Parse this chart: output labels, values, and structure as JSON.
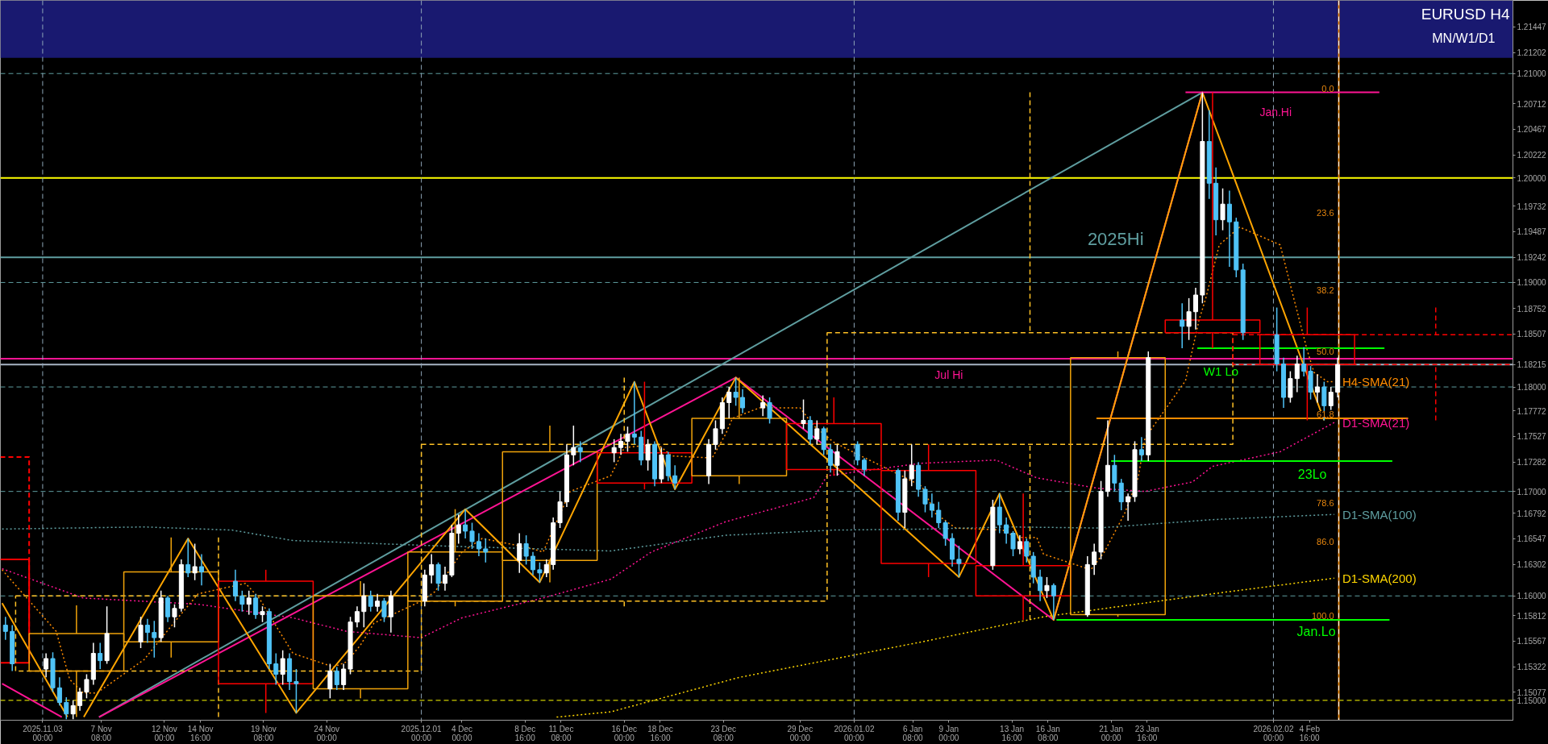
{
  "chart_data": {
    "type": "candlestick",
    "title": "EURUSD H4",
    "subtitle": "MN/W1/D1",
    "xlim": [
      "2025-10-30T21:00",
      "2026-02-19T17:00"
    ],
    "xticks": [
      {
        "value": "2025-11-03T00:00",
        "label": "2025.11.03 00:00"
      },
      {
        "value": "2025-11-07T08:00",
        "label": "7 Nov 08:00"
      },
      {
        "value": "2025-11-12T00:00",
        "label": "12 Nov 00:00"
      },
      {
        "value": "2025-11-14T16:00",
        "label": "14 Nov 16:00"
      },
      {
        "value": "2025-11-19T08:00",
        "label": "19 Nov 08:00"
      },
      {
        "value": "2025-11-24T00:00",
        "label": "24 Nov 00:00"
      },
      {
        "value": "2025-12-01T00:00",
        "label": "2025.12.01 00:00"
      },
      {
        "value": "2025-12-04T00:00",
        "label": "4 Dec 00:00"
      },
      {
        "value": "2025-12-08T16:00",
        "label": "8 Dec 16:00"
      },
      {
        "value": "2025-12-11T08:00",
        "label": "11 Dec 08:00"
      },
      {
        "value": "2025-12-16T00:00",
        "label": "16 Dec 00:00"
      },
      {
        "value": "2025-12-18T16:00",
        "label": "18 Dec 16:00"
      },
      {
        "value": "2025-12-23T08:00",
        "label": "23 Dec 08:00"
      },
      {
        "value": "2025-12-29T00:00",
        "label": "29 Dec 00:00"
      },
      {
        "value": "2026-01-02T00:00",
        "label": "2026.01.02 00:00"
      },
      {
        "value": "2026-01-06T08:00",
        "label": "6 Jan 08:00"
      },
      {
        "value": "2026-01-09T00:00",
        "label": "9 Jan 00:00"
      },
      {
        "value": "2026-01-13T16:00",
        "label": "13 Jan 16:00"
      },
      {
        "value": "2026-01-16T08:00",
        "label": "16 Jan 08:00"
      },
      {
        "value": "2026-01-21T00:00",
        "label": "21 Jan 00:00"
      },
      {
        "value": "2026-01-23T16:00",
        "label": "23 Jan 16:00"
      },
      {
        "value": "2026-02-02T00:00",
        "label": "2026.02.02 00:00"
      },
      {
        "value": "2026-02-04T16:00",
        "label": "4 Feb 16:00"
      }
    ],
    "ylim": [
      1.1481,
      1.217
    ],
    "yticks": [
      1.21447,
      1.21202,
      {
        "value": 1.21,
        "label": "1.21000"
      },
      1.20712,
      1.20467,
      1.20222,
      {
        "value": 1.2,
        "label": "1.20000"
      },
      1.19732,
      1.19487,
      1.19242,
      {
        "value": 1.19,
        "label": "1.19000"
      },
      1.18752,
      1.18507,
      1.18215,
      {
        "value": 1.18,
        "label": "1.18000"
      },
      1.17772,
      1.17527,
      1.17282,
      {
        "value": 1.17,
        "label": "1.17000"
      },
      1.16792,
      1.16547,
      1.16302,
      {
        "value": 1.16,
        "label": "1.16000"
      },
      1.15812,
      1.15567,
      1.15322,
      1.15077,
      {
        "value": 1.15,
        "label": "1.15000"
      }
    ],
    "bands": [
      {
        "axis": "y",
        "from": 1.2115,
        "to": 1.217,
        "color": "#191970"
      }
    ],
    "ref_lines": [
      {
        "axis": "y",
        "value": 1.21,
        "color": "#5f9ea0",
        "line_style": "dashed"
      },
      {
        "axis": "y",
        "value": 1.2,
        "color": "#ffff00"
      },
      {
        "axis": "y",
        "value": 1.1924,
        "color": "#5f9ea0"
      },
      {
        "axis": "y",
        "value": 1.19,
        "color": "#5f9ea0",
        "line_style": "dashed"
      },
      {
        "axis": "y",
        "value": 1.1827,
        "color": "#ff1493"
      },
      {
        "axis": "y",
        "value": 1.18215,
        "color": "#a8b4c4"
      },
      {
        "axis": "y",
        "value": 1.18,
        "color": "#5f9ea0",
        "line_style": "dashed"
      },
      {
        "axis": "y",
        "value": 1.17,
        "color": "#5f9ea0",
        "line_style": "dashed"
      },
      {
        "axis": "y",
        "value": 1.16,
        "color": "#5f9ea0",
        "line_style": "dashed"
      },
      {
        "axis": "y",
        "value": 1.15,
        "color": "#ffff00",
        "line_style": "dashed"
      },
      {
        "axis": "x",
        "value": "2025-11-03T00:00",
        "color": "#8fa6b8",
        "line_style": "dashed"
      },
      {
        "axis": "x",
        "value": "2025-12-01T00:00",
        "color": "#8fa6b8",
        "line_style": "dashed"
      },
      {
        "axis": "x",
        "value": "2026-01-02T00:00",
        "color": "#8fa6b8",
        "line_style": "dashed"
      },
      {
        "axis": "x",
        "value": "2026-02-02T00:00",
        "color": "#8fa6b8",
        "line_style": "dashed"
      },
      {
        "axis": "x",
        "value": "2026-02-06T20:00",
        "color": "#e8870e"
      },
      {
        "axis": "x",
        "value": "2026-02-06T20:00",
        "color": "#ffffff",
        "line_style": "dashed"
      }
    ],
    "annotations": [
      {
        "text": "2025Hi",
        "x": "2026-01-21T08:00",
        "y": 1.1924
      },
      {
        "text": "Jul Hi",
        "x": "2026-01-09T00:00",
        "y": 1.1827
      },
      {
        "text": "Jan.Hi",
        "x": "2026-02-02T04:00",
        "y": 1.2082
      },
      {
        "text": "W1 Lo",
        "x": "2026-01-29T03:00",
        "y": 1.1837
      },
      {
        "text": "23Lo",
        "x": "2026-02-04T21:00",
        "y": 1.1729
      },
      {
        "text": "Jan.Lo",
        "x": "2026-02-05T04:00",
        "y": 1.1577
      },
      {
        "text": "0.0",
        "x": "2026-02-06T20:00",
        "y": 1.2082
      },
      {
        "text": "23.6",
        "x": "2026-02-06T20:00",
        "y": 1.1963
      },
      {
        "text": "38.2",
        "x": "2026-02-06T20:00",
        "y": 1.1889
      },
      {
        "text": "50.0",
        "x": "2026-02-06T20:00",
        "y": 1.183
      },
      {
        "text": "61.8",
        "x": "2026-02-06T20:00",
        "y": 1.177
      },
      {
        "text": "78.6",
        "x": "2026-02-06T20:00",
        "y": 1.1685
      },
      {
        "text": "86.0",
        "x": "2026-02-06T20:00",
        "y": 1.1648
      },
      {
        "text": "100.0",
        "x": "2026-02-06T20:00",
        "y": 1.1577
      }
    ],
    "series": [
      {
        "type": "line",
        "name": "H4-SMA(21)",
        "color": "#ff8c00",
        "line_style": "dotted",
        "x": [
          "2025-10-31T00:00",
          "2025-11-04T00:00",
          "2025-11-05T00:00",
          "2025-11-06T00:00",
          "2025-11-07T00:00",
          "2025-11-10T12:00",
          "2025-11-13T00:00",
          "2025-11-14T12:00",
          "2025-11-18T00:00",
          "2025-11-19T00:00",
          "2025-11-20T12:00",
          "2025-11-21T12:00",
          "2025-11-24T12:00",
          "2025-11-25T12:00",
          "2025-11-26T12:00",
          "2025-11-27T12:00",
          "2025-12-01T00:00",
          "2025-12-02T00:00",
          "2025-12-03T00:00",
          "2025-12-04T00:00",
          "2025-12-05T12:00",
          "2025-12-09T00:00",
          "2025-12-10T00:00",
          "2025-12-11T00:00",
          "2025-12-12T00:00",
          "2025-12-15T00:00",
          "2025-12-15T12:00",
          "2025-12-16T00:00",
          "2025-12-18T12:00",
          "2025-12-19T12:00",
          "2025-12-22T12:00",
          "2025-12-23T12:00",
          "2025-12-24T00:00",
          "2025-12-26T00:00",
          "2025-12-29T00:00",
          "2025-12-30T00:00",
          "2025-12-31T12:00",
          "2026-01-02T12:00",
          "2026-01-05T12:00",
          "2026-01-07T00:00",
          "2026-01-08T00:00",
          "2026-01-09T12:00",
          "2026-01-13T00:00",
          "2026-01-14T00:00",
          "2026-01-15T12:00",
          "2026-01-16T00:00",
          "2026-01-19T12:00",
          "2026-01-20T12:00",
          "2026-01-22T00:00",
          "2026-01-23T00:00",
          "2026-01-23T12:00",
          "2026-01-26T12:00",
          "2026-01-27T12:00",
          "2026-01-28T00:00",
          "2026-01-29T00:00",
          "2026-01-30T12:00",
          "2026-02-02T12:00",
          "2026-02-03T12:00",
          "2026-02-04T12:00",
          "2026-02-05T00:00",
          "2026-02-06T00:00",
          "2026-02-06T12:00"
        ],
        "values": [
          1.1625,
          1.1566,
          1.152,
          1.1507,
          1.1507,
          1.1539,
          1.1579,
          1.1602,
          1.1612,
          1.1598,
          1.1566,
          1.1545,
          1.1532,
          1.1537,
          1.1553,
          1.1574,
          1.1595,
          1.1604,
          1.1623,
          1.1642,
          1.1655,
          1.1646,
          1.1642,
          1.1671,
          1.17,
          1.1715,
          1.1728,
          1.1742,
          1.1745,
          1.1734,
          1.1732,
          1.1755,
          1.177,
          1.178,
          1.178,
          1.1763,
          1.1747,
          1.1734,
          1.1715,
          1.1705,
          1.1679,
          1.1665,
          1.1663,
          1.1656,
          1.1656,
          1.164,
          1.1625,
          1.1642,
          1.1679,
          1.1713,
          1.1751,
          1.1806,
          1.1864,
          1.1885,
          1.1936,
          1.1953,
          1.1936,
          1.1885,
          1.1835,
          1.1814,
          1.1805,
          1.1805
        ]
      },
      {
        "type": "line",
        "name": "D1-SMA(21)",
        "color": "#ff1493",
        "line_style": "dotted",
        "x": [
          "2025-10-31T00:00",
          "2025-11-06T00:00",
          "2025-11-14T12:00",
          "2025-11-21T12:00",
          "2025-11-25T12:00",
          "2025-12-01T00:00",
          "2025-12-04T00:00",
          "2025-12-10T00:00",
          "2025-12-15T00:00",
          "2025-12-18T00:00",
          "2025-12-23T12:00",
          "2025-12-30T00:00",
          "2025-12-31T00:00",
          "2026-01-07T00:00",
          "2026-01-12T12:00",
          "2026-01-15T12:00",
          "2026-01-20T00:00",
          "2026-01-23T12:00",
          "2026-01-27T00:00",
          "2026-01-28T12:00",
          "2026-02-02T12:00",
          "2026-02-05T12:00",
          "2026-02-06T12:00"
        ],
        "values": [
          1.1626,
          1.1598,
          1.1592,
          1.1579,
          1.1566,
          1.156,
          1.1579,
          1.1598,
          1.1616,
          1.1642,
          1.1671,
          1.1694,
          1.1715,
          1.1727,
          1.173,
          1.1713,
          1.1703,
          1.17,
          1.1709,
          1.1724,
          1.1738,
          1.1759,
          1.1766
        ]
      },
      {
        "type": "line",
        "name": "D1-SMA(100)",
        "color": "#5f9ea0",
        "line_style": "dotted",
        "x": [
          "2025-10-31T00:00",
          "2025-11-10T12:00",
          "2025-11-17T00:00",
          "2025-11-21T12:00",
          "2025-12-02T00:00",
          "2025-12-15T00:00",
          "2025-12-23T12:00",
          "2025-12-31T12:00",
          "2026-01-07T12:00",
          "2026-01-13T12:00",
          "2026-01-20T00:00",
          "2026-01-28T12:00",
          "2026-02-06T12:00"
        ],
        "values": [
          1.1664,
          1.1666,
          1.1663,
          1.1653,
          1.1648,
          1.1643,
          1.1658,
          1.1663,
          1.1664,
          1.1666,
          1.1665,
          1.1673,
          1.1678
        ]
      },
      {
        "type": "line",
        "name": "D1-SMA(200)",
        "color": "#ffd700",
        "line_style": "dotted",
        "x": [
          "2025-12-11T00:00",
          "2025-12-15T00:00",
          "2025-12-24T12:00",
          "2026-01-07T00:00",
          "2026-01-16T00:00",
          "2026-01-28T12:00",
          "2026-02-06T12:00"
        ],
        "values": [
          1.1484,
          1.1489,
          1.1522,
          1.1556,
          1.158,
          1.1602,
          1.1617
        ]
      },
      {
        "type": "line",
        "color": "#5f9ea0",
        "x": [
          "2025-11-07T04:00",
          "2026-01-27T18:00"
        ],
        "values": [
          1.1484,
          1.2082
        ]
      },
      {
        "type": "line",
        "color": "#ff1493",
        "x": [
          "2025-10-31T00:00",
          "2025-11-04T10:00",
          "2025-11-05T12:00",
          "2025-11-07T04:00",
          "2025-12-24T06:00",
          "2026-01-16T18:00",
          "2026-01-27T18:00"
        ],
        "values": [
          1.1516,
          1.1484,
          null,
          1.1484,
          1.1809,
          1.1577,
          1.2082
        ]
      },
      {
        "type": "line",
        "color": "#ffa500",
        "x": [
          "2025-10-31T00:00",
          "2025-11-04T20:00",
          "2025-11-05T10:00",
          "2025-11-06T01:00",
          "2025-11-13T18:00",
          "2025-11-21T18:00",
          "2025-12-04T06:00",
          "2025-12-09T18:00",
          "2025-12-16T18:00",
          "2025-12-19T18:00",
          "2025-12-24T06:00",
          "2026-01-09T18:00",
          "2026-01-12T18:00",
          "2026-01-16T18:00",
          "2026-01-27T18:00",
          "2026-02-05T18:00"
        ],
        "values": [
          1.1593,
          1.1484,
          null,
          1.1484,
          1.1655,
          1.1488,
          1.1683,
          1.1613,
          1.1805,
          1.1702,
          1.1809,
          1.1618,
          1.1698,
          1.1577,
          1.2082,
          1.1768
        ]
      },
      {
        "type": "line",
        "color": "#ff1493",
        "x": [
          "2026-01-26T12:00",
          "2026-02-09T20:00"
        ],
        "values": [
          1.2082,
          1.2082
        ]
      },
      {
        "type": "line",
        "color": "#ff8c00",
        "x": [
          "2026-01-19T22:00",
          "2026-02-11T23:00"
        ],
        "values": [
          1.177,
          1.177
        ]
      },
      {
        "type": "line",
        "color": "#00ff00",
        "x": [
          "2026-01-27T09:00",
          "2026-02-10T05:00"
        ],
        "values": [
          1.1837,
          1.1837
        ]
      },
      {
        "type": "line",
        "color": "#00ff00",
        "x": [
          "2026-01-21T00:00",
          "2026-02-10T19:00"
        ],
        "values": [
          1.1729,
          1.1729
        ]
      },
      {
        "type": "line",
        "color": "#00ff00",
        "x": [
          "2026-01-16T23:00",
          "2026-02-10T14:00"
        ],
        "values": [
          1.1577,
          1.1577
        ]
      },
      {
        "type": "line",
        "color": "#ff0000",
        "line_style": "dashed",
        "x": [
          "2025-10-30T21:00",
          "2025-11-02T00:00",
          "2025-11-02T00:00"
        ],
        "values": [
          1.1733,
          1.1733,
          1.1536
        ]
      },
      {
        "type": "line",
        "color": "#ff0000",
        "x": [
          "2025-10-30T21:00",
          "2025-11-02T00:00",
          "2025-11-02T00:00",
          "2025-10-30T21:00"
        ],
        "values": [
          1.1635,
          1.1635,
          1.1536,
          1.1536
        ]
      },
      {
        "type": "candlestick",
        "line_style": "dashed",
        "x": [
          "2025-11-16T00:00",
          "2025-12-16T00:00",
          "2026-01-15T00:00",
          "2026-02-14T00:00"
        ],
        "ohlc": [
          [
            1.1528,
            1.1656,
            1.1484,
            1.16
          ],
          [
            1.1595,
            1.1809,
            1.159,
            1.1745
          ],
          [
            1.1745,
            1.2082,
            1.1577,
            1.1852
          ],
          [
            1.185,
            1.1876,
            1.1768,
            1.18215
          ]
        ],
        "colors": [
          "#ffc125",
          "#ffc125",
          "#ffc125",
          "#ff0000"
        ]
      },
      {
        "type": "candlestick",
        "line_style": "solid",
        "x": [
          "2025-11-05T12:00",
          "2025-11-12T12:00",
          "2025-11-19T12:00",
          "2025-11-26T12:00",
          "2025-12-03T12:00",
          "2025-12-10T12:00",
          "2025-12-17T12:00",
          "2025-12-24T12:00",
          "2025-12-31T12:00",
          "2026-01-07T12:00",
          "2026-01-14T12:00",
          "2026-01-21T12:00",
          "2026-01-28T12:00",
          "2026-02-04T12:00"
        ],
        "ohlc": [
          [
            1.1528,
            1.1591,
            1.1484,
            1.1564
          ],
          [
            1.1556,
            1.1656,
            1.1541,
            1.1623
          ],
          [
            1.1614,
            1.1625,
            1.1488,
            1.1516
          ],
          [
            1.1511,
            1.1614,
            1.1502,
            1.16
          ],
          [
            1.1595,
            1.1683,
            1.159,
            1.1642
          ],
          [
            1.1634,
            1.1763,
            1.1613,
            1.1738
          ],
          [
            1.1737,
            1.1805,
            1.1702,
            1.1708
          ],
          [
            1.1715,
            1.1809,
            1.1707,
            1.177
          ],
          [
            1.1765,
            1.179,
            1.1715,
            1.1721
          ],
          [
            1.172,
            1.1745,
            1.1618,
            1.1631
          ],
          [
            1.1629,
            1.1698,
            1.1577,
            1.16
          ],
          [
            1.1582,
            1.1834,
            1.158,
            1.1828
          ],
          [
            1.1864,
            1.2082,
            1.1837,
            1.1852
          ],
          [
            1.185,
            1.1876,
            1.1768,
            1.18215
          ]
        ],
        "colors": [
          "#f0a30a",
          "#f0a30a",
          "#ff0000",
          "#f0a30a",
          "#f0a30a",
          "#f0a30a",
          "#ff0000",
          "#f0a30a",
          "#ff0000",
          "#ff0000",
          "#ff0000",
          "#f0a30a",
          "#ff0000",
          "#ff0000"
        ]
      },
      {
        "x": [
          "2025-10-31T06:00",
          "2025-10-31T18:00",
          "2025-11-03T06:00",
          "2025-11-03T18:00",
          "2025-11-04T06:00",
          "2025-11-04T18:00",
          "2025-11-05T06:00",
          "2025-11-05T18:00",
          "2025-11-06T06:00",
          "2025-11-06T18:00",
          "2025-11-07T06:00",
          "2025-11-07T18:00",
          "2025-11-10T06:00",
          "2025-11-10T18:00",
          "2025-11-11T06:00",
          "2025-11-11T18:00",
          "2025-11-12T06:00",
          "2025-11-12T18:00",
          "2025-11-13T06:00",
          "2025-11-13T18:00",
          "2025-11-14T06:00",
          "2025-11-14T18:00",
          "2025-11-17T06:00",
          "2025-11-17T18:00",
          "2025-11-18T06:00",
          "2025-11-18T18:00",
          "2025-11-19T06:00",
          "2025-11-19T18:00",
          "2025-11-20T06:00",
          "2025-11-20T18:00",
          "2025-11-21T06:00",
          "2025-11-21T18:00",
          "2025-11-24T06:00",
          "2025-11-24T18:00",
          "2025-11-25T06:00",
          "2025-11-25T18:00",
          "2025-11-26T06:00",
          "2025-11-26T18:00",
          "2025-11-27T06:00",
          "2025-11-27T18:00",
          "2025-11-28T06:00",
          "2025-11-28T18:00",
          "2025-12-01T06:00",
          "2025-12-01T18:00",
          "2025-12-02T06:00",
          "2025-12-02T18:00",
          "2025-12-03T06:00",
          "2025-12-03T18:00",
          "2025-12-04T06:00",
          "2025-12-04T18:00",
          "2025-12-05T06:00",
          "2025-12-05T18:00",
          "2025-12-08T06:00",
          "2025-12-08T18:00",
          "2025-12-09T06:00",
          "2025-12-09T18:00",
          "2025-12-10T06:00",
          "2025-12-10T18:00",
          "2025-12-11T06:00",
          "2025-12-11T18:00",
          "2025-12-12T06:00",
          "2025-12-12T18:00",
          "2025-12-15T06:00",
          "2025-12-15T18:00",
          "2025-12-16T06:00",
          "2025-12-16T18:00",
          "2025-12-17T06:00",
          "2025-12-17T18:00",
          "2025-12-18T06:00",
          "2025-12-18T18:00",
          "2025-12-19T06:00",
          "2025-12-19T18:00",
          "2025-12-22T06:00",
          "2025-12-22T18:00",
          "2025-12-23T06:00",
          "2025-12-23T18:00",
          "2025-12-24T06:00",
          "2025-12-24T18:00",
          "2025-12-26T06:00",
          "2025-12-26T18:00",
          "2025-12-29T06:00",
          "2025-12-29T18:00",
          "2025-12-30T06:00",
          "2025-12-30T18:00",
          "2025-12-31T06:00",
          "2025-12-31T18:00",
          "2026-01-02T06:00",
          "2026-01-02T18:00",
          "2026-01-05T06:00",
          "2026-01-05T18:00",
          "2026-01-06T06:00",
          "2026-01-06T18:00",
          "2026-01-07T06:00",
          "2026-01-07T18:00",
          "2026-01-08T06:00",
          "2026-01-08T18:00",
          "2026-01-09T06:00",
          "2026-01-09T18:00",
          "2026-01-12T06:00",
          "2026-01-12T18:00",
          "2026-01-13T06:00",
          "2026-01-13T18:00",
          "2026-01-14T06:00",
          "2026-01-14T18:00",
          "2026-01-15T06:00",
          "2026-01-15T18:00",
          "2026-01-16T06:00",
          "2026-01-16T18:00",
          "2026-01-19T06:00",
          "2026-01-19T18:00",
          "2026-01-20T06:00",
          "2026-01-20T18:00",
          "2026-01-21T06:00",
          "2026-01-21T18:00",
          "2026-01-22T06:00",
          "2026-01-22T18:00",
          "2026-01-23T06:00",
          "2026-01-23T18:00",
          "2026-01-26T06:00",
          "2026-01-26T18:00",
          "2026-01-27T06:00",
          "2026-01-27T18:00",
          "2026-01-28T06:00",
          "2026-01-28T18:00",
          "2026-01-29T06:00",
          "2026-01-29T18:00",
          "2026-01-30T06:00",
          "2026-01-30T18:00",
          "2026-02-02T06:00",
          "2026-02-02T18:00",
          "2026-02-03T06:00",
          "2026-02-03T18:00",
          "2026-02-04T06:00",
          "2026-02-04T18:00",
          "2026-02-05T06:00",
          "2026-02-05T18:00",
          "2026-02-06T06:00",
          "2026-02-06T18:00"
        ],
        "ohlc": [
          [
            1.1572,
            1.158,
            1.1558,
            1.1566
          ],
          [
            1.1566,
            1.1572,
            1.1528,
            1.1535
          ],
          [
            1.153,
            1.1545,
            1.1522,
            1.154
          ],
          [
            1.154,
            1.1546,
            1.1508,
            1.1512
          ],
          [
            1.1512,
            1.1522,
            1.1495,
            1.1498
          ],
          [
            1.1498,
            1.1503,
            1.1482,
            1.1487
          ],
          [
            1.1487,
            1.15,
            1.1482,
            1.1495
          ],
          [
            1.1495,
            1.1512,
            1.149,
            1.1508
          ],
          [
            1.1508,
            1.1525,
            1.1502,
            1.152
          ],
          [
            1.152,
            1.1555,
            1.1515,
            1.1545
          ],
          [
            1.1545,
            1.1555,
            1.153,
            1.1538
          ],
          [
            1.1538,
            1.159,
            1.1535,
            1.1564
          ],
          [
            1.1556,
            1.158,
            1.155,
            1.1572
          ],
          [
            1.1572,
            1.1578,
            1.1555,
            1.1565
          ],
          [
            1.1565,
            1.1576,
            1.1541,
            1.156
          ],
          [
            1.156,
            1.1605,
            1.1556,
            1.1598
          ],
          [
            1.1598,
            1.16,
            1.1575,
            1.158
          ],
          [
            1.158,
            1.1592,
            1.157,
            1.1588
          ],
          [
            1.1588,
            1.1635,
            1.1585,
            1.163
          ],
          [
            1.163,
            1.1655,
            1.1618,
            1.1622
          ],
          [
            1.1622,
            1.165,
            1.1615,
            1.1628
          ],
          [
            1.1628,
            1.164,
            1.161,
            1.1623
          ],
          [
            1.1614,
            1.1625,
            1.1595,
            1.16
          ],
          [
            1.16,
            1.1605,
            1.1585,
            1.1592
          ],
          [
            1.1592,
            1.1605,
            1.1582,
            1.1598
          ],
          [
            1.1598,
            1.1602,
            1.1578,
            1.1582
          ],
          [
            1.1582,
            1.159,
            1.1575,
            1.1585
          ],
          [
            1.1585,
            1.1588,
            1.153,
            1.1535
          ],
          [
            1.1535,
            1.1545,
            1.1515,
            1.1525
          ],
          [
            1.1525,
            1.1548,
            1.1515,
            1.154
          ],
          [
            1.154,
            1.1545,
            1.151,
            1.1518
          ],
          [
            1.1518,
            1.153,
            1.1488,
            1.1516
          ],
          [
            1.1511,
            1.1535,
            1.1502,
            1.1528
          ],
          [
            1.1528,
            1.1532,
            1.151,
            1.1515
          ],
          [
            1.1515,
            1.1535,
            1.151,
            1.153
          ],
          [
            1.153,
            1.158,
            1.1525,
            1.1575
          ],
          [
            1.1575,
            1.159,
            1.157,
            1.1585
          ],
          [
            1.1585,
            1.1612,
            1.157,
            1.16
          ],
          [
            1.16,
            1.1605,
            1.1585,
            1.159
          ],
          [
            1.159,
            1.1602,
            1.1585,
            1.1595
          ],
          [
            1.1595,
            1.1598,
            1.1575,
            1.158
          ],
          [
            1.158,
            1.1605,
            1.1565,
            1.16
          ],
          [
            1.1595,
            1.1625,
            1.159,
            1.162
          ],
          [
            1.162,
            1.164,
            1.1612,
            1.163
          ],
          [
            1.163,
            1.1632,
            1.1605,
            1.1612
          ],
          [
            1.1612,
            1.1628,
            1.1605,
            1.162
          ],
          [
            1.162,
            1.1668,
            1.1618,
            1.166
          ],
          [
            1.166,
            1.1678,
            1.165,
            1.1668
          ],
          [
            1.1668,
            1.1683,
            1.1655,
            1.1662
          ],
          [
            1.1662,
            1.167,
            1.1645,
            1.1652
          ],
          [
            1.1652,
            1.166,
            1.1638,
            1.1645
          ],
          [
            1.1645,
            1.1655,
            1.1632,
            1.1642
          ],
          [
            1.1634,
            1.166,
            1.1622,
            1.165
          ],
          [
            1.165,
            1.1658,
            1.163,
            1.1638
          ],
          [
            1.1638,
            1.1642,
            1.162,
            1.1625
          ],
          [
            1.1625,
            1.1632,
            1.1613,
            1.1622
          ],
          [
            1.1622,
            1.1635,
            1.1618,
            1.163
          ],
          [
            1.163,
            1.1675,
            1.1625,
            1.167
          ],
          [
            1.167,
            1.17,
            1.1665,
            1.169
          ],
          [
            1.169,
            1.1745,
            1.1685,
            1.1735
          ],
          [
            1.1735,
            1.1763,
            1.1725,
            1.1742
          ],
          [
            1.1742,
            1.1748,
            1.1728,
            1.1738
          ],
          [
            1.1737,
            1.175,
            1.1728,
            1.1742
          ],
          [
            1.1742,
            1.1755,
            1.1735,
            1.1748
          ],
          [
            1.1748,
            1.1762,
            1.1738,
            1.1755
          ],
          [
            1.1755,
            1.1805,
            1.1745,
            1.1752
          ],
          [
            1.1752,
            1.1758,
            1.1725,
            1.173
          ],
          [
            1.173,
            1.175,
            1.172,
            1.1745
          ],
          [
            1.1745,
            1.1748,
            1.1705,
            1.1712
          ],
          [
            1.1712,
            1.1742,
            1.1708,
            1.1735
          ],
          [
            1.1735,
            1.1738,
            1.171,
            1.1715
          ],
          [
            1.1715,
            1.1725,
            1.1702,
            1.1708
          ],
          [
            1.1715,
            1.175,
            1.1707,
            1.1745
          ],
          [
            1.1745,
            1.1768,
            1.174,
            1.176
          ],
          [
            1.176,
            1.179,
            1.1755,
            1.1785
          ],
          [
            1.1785,
            1.18,
            1.177,
            1.1795
          ],
          [
            1.1795,
            1.1809,
            1.1782,
            1.179
          ],
          [
            1.179,
            1.1798,
            1.1775,
            1.178
          ],
          [
            1.178,
            1.1792,
            1.1772,
            1.1785
          ],
          [
            1.1785,
            1.179,
            1.1765,
            1.177
          ],
          [
            1.1765,
            1.1788,
            1.176,
            1.1768
          ],
          [
            1.1768,
            1.1772,
            1.1745,
            1.175
          ],
          [
            1.175,
            1.1768,
            1.1745,
            1.176
          ],
          [
            1.176,
            1.1762,
            1.1735,
            1.174
          ],
          [
            1.174,
            1.1745,
            1.1718,
            1.1725
          ],
          [
            1.1725,
            1.1745,
            1.1715,
            1.1738
          ],
          [
            1.1745,
            1.1748,
            1.1725,
            1.173
          ],
          [
            1.173,
            1.1732,
            1.1715,
            1.1721
          ],
          [
            1.172,
            1.1722,
            1.1672,
            1.168
          ],
          [
            1.168,
            1.172,
            1.1665,
            1.1712
          ],
          [
            1.1712,
            1.1745,
            1.1705,
            1.1725
          ],
          [
            1.1725,
            1.1728,
            1.1695,
            1.1702
          ],
          [
            1.1702,
            1.1705,
            1.168,
            1.1688
          ],
          [
            1.1688,
            1.1698,
            1.1675,
            1.1682
          ],
          [
            1.1682,
            1.169,
            1.1665,
            1.167
          ],
          [
            1.167,
            1.1672,
            1.1648,
            1.1655
          ],
          [
            1.1655,
            1.166,
            1.1628,
            1.1635
          ],
          [
            1.1635,
            1.1648,
            1.1618,
            1.1631
          ],
          [
            1.1629,
            1.1692,
            1.1625,
            1.1685
          ],
          [
            1.1685,
            1.1698,
            1.166,
            1.1668
          ],
          [
            1.1668,
            1.1675,
            1.165,
            1.166
          ],
          [
            1.166,
            1.1662,
            1.1638,
            1.1645
          ],
          [
            1.1645,
            1.1658,
            1.164,
            1.1652
          ],
          [
            1.1652,
            1.1655,
            1.1632,
            1.1638
          ],
          [
            1.1638,
            1.1642,
            1.1612,
            1.1618
          ],
          [
            1.1618,
            1.1625,
            1.1595,
            1.1605
          ],
          [
            1.1605,
            1.1618,
            1.1598,
            1.161
          ],
          [
            1.161,
            1.1612,
            1.1577,
            1.16
          ],
          [
            1.1582,
            1.1638,
            1.158,
            1.163
          ],
          [
            1.163,
            1.165,
            1.162,
            1.1642
          ],
          [
            1.1642,
            1.171,
            1.1635,
            1.17
          ],
          [
            1.17,
            1.1768,
            1.1695,
            1.1725
          ],
          [
            1.1725,
            1.1735,
            1.17,
            1.1708
          ],
          [
            1.1708,
            1.1712,
            1.1682,
            1.169
          ],
          [
            1.169,
            1.1698,
            1.1672,
            1.1695
          ],
          [
            1.1695,
            1.1748,
            1.169,
            1.174
          ],
          [
            1.174,
            1.1752,
            1.1729,
            1.1735
          ],
          [
            1.1735,
            1.1834,
            1.1729,
            1.1828
          ],
          [
            1.1864,
            1.188,
            1.1837,
            1.1858
          ],
          [
            1.1858,
            1.1885,
            1.1845,
            1.1872
          ],
          [
            1.1872,
            1.1895,
            1.1855,
            1.1888
          ],
          [
            1.1888,
            1.2082,
            1.188,
            1.2035
          ],
          [
            1.2035,
            1.2065,
            1.198,
            1.1995
          ],
          [
            1.1995,
            1.201,
            1.1945,
            1.196
          ],
          [
            1.196,
            1.199,
            1.195,
            1.1975
          ],
          [
            1.1975,
            1.1988,
            1.1915,
            1.1958
          ],
          [
            1.1958,
            1.1962,
            1.1905,
            1.1912
          ],
          [
            1.1912,
            1.1918,
            1.1845,
            1.1852
          ],
          [
            1.185,
            1.1876,
            1.1815,
            1.1822
          ],
          [
            1.1822,
            1.1828,
            1.178,
            1.179
          ],
          [
            1.179,
            1.1815,
            1.1785,
            1.1808
          ],
          [
            1.1808,
            1.183,
            1.1795,
            1.1822
          ],
          [
            1.1822,
            1.1838,
            1.181,
            1.1815
          ],
          [
            1.1815,
            1.182,
            1.1788,
            1.1795
          ],
          [
            1.1795,
            1.1812,
            1.1785,
            1.18
          ],
          [
            1.18,
            1.1805,
            1.1768,
            1.1782
          ],
          [
            1.1782,
            1.18,
            1.1778,
            1.1795
          ],
          [
            1.1795,
            1.1828,
            1.179,
            1.18215
          ]
        ],
        "colors": [
          "#4fc3f7",
          "#4fc3f7",
          "#ffffff",
          "#4fc3f7",
          "#4fc3f7",
          "#4fc3f7",
          "#ffffff",
          "#ffffff",
          "#ffffff",
          "#ffffff",
          "#4fc3f7",
          "#ffffff",
          "#ffffff",
          "#4fc3f7",
          "#4fc3f7",
          "#ffffff",
          "#4fc3f7",
          "#ffffff",
          "#ffffff",
          "#4fc3f7",
          "#ffffff",
          "#4fc3f7",
          "#4fc3f7",
          "#4fc3f7",
          "#ffffff",
          "#4fc3f7",
          "#ffffff",
          "#4fc3f7",
          "#4fc3f7",
          "#ffffff",
          "#4fc3f7",
          "#4fc3f7",
          "#ffffff",
          "#4fc3f7",
          "#ffffff",
          "#ffffff",
          "#ffffff",
          "#ffffff",
          "#4fc3f7",
          "#ffffff",
          "#4fc3f7",
          "#ffffff",
          "#ffffff",
          "#ffffff",
          "#4fc3f7",
          "#ffffff",
          "#ffffff",
          "#ffffff",
          "#4fc3f7",
          "#4fc3f7",
          "#4fc3f7",
          "#4fc3f7",
          "#ffffff",
          "#4fc3f7",
          "#4fc3f7",
          "#4fc3f7",
          "#ffffff",
          "#ffffff",
          "#ffffff",
          "#ffffff",
          "#ffffff",
          "#4fc3f7",
          "#ffffff",
          "#ffffff",
          "#ffffff",
          "#4fc3f7",
          "#4fc3f7",
          "#ffffff",
          "#4fc3f7",
          "#ffffff",
          "#4fc3f7",
          "#4fc3f7",
          "#ffffff",
          "#ffffff",
          "#ffffff",
          "#ffffff",
          "#4fc3f7",
          "#4fc3f7",
          "#ffffff",
          "#4fc3f7",
          "#ffffff",
          "#4fc3f7",
          "#ffffff",
          "#4fc3f7",
          "#4fc3f7",
          "#ffffff",
          "#4fc3f7",
          "#4fc3f7",
          "#4fc3f7",
          "#ffffff",
          "#ffffff",
          "#4fc3f7",
          "#4fc3f7",
          "#4fc3f7",
          "#4fc3f7",
          "#4fc3f7",
          "#4fc3f7",
          "#4fc3f7",
          "#ffffff",
          "#4fc3f7",
          "#4fc3f7",
          "#4fc3f7",
          "#ffffff",
          "#4fc3f7",
          "#4fc3f7",
          "#4fc3f7",
          "#ffffff",
          "#4fc3f7",
          "#ffffff",
          "#ffffff",
          "#ffffff",
          "#ffffff",
          "#4fc3f7",
          "#4fc3f7",
          "#ffffff",
          "#ffffff",
          "#4fc3f7",
          "#ffffff",
          "#4fc3f7",
          "#ffffff",
          "#ffffff",
          "#ffffff",
          "#4fc3f7",
          "#4fc3f7",
          "#ffffff",
          "#4fc3f7",
          "#4fc3f7",
          "#4fc3f7",
          "#4fc3f7",
          "#4fc3f7",
          "#ffffff",
          "#ffffff",
          "#4fc3f7",
          "#4fc3f7",
          "#ffffff",
          "#4fc3f7",
          "#ffffff",
          "#ffffff"
        ]
      }
    ]
  }
}
